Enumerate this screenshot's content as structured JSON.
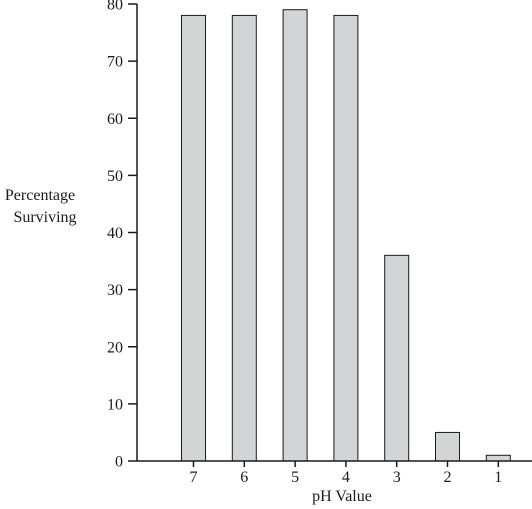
{
  "chart_data": {
    "type": "bar",
    "title": "",
    "xlabel": "pH Value",
    "ylabel_lines": [
      "Percentage",
      "Surviving"
    ],
    "categories": [
      "7",
      "6",
      "5",
      "4",
      "3",
      "2",
      "1"
    ],
    "values": [
      78,
      78,
      79,
      78,
      36,
      5,
      1
    ],
    "ylim": [
      0,
      80
    ],
    "yticks": [
      0,
      10,
      20,
      30,
      40,
      50,
      60,
      70,
      80
    ],
    "grid": false,
    "bar_color": "#d3d4d6",
    "edge_color": "#1a1a1a"
  }
}
